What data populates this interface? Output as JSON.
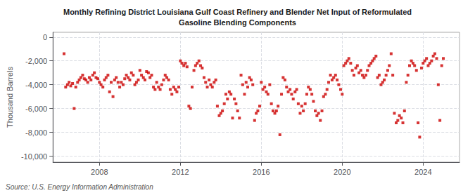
{
  "chart_data": {
    "type": "scatter",
    "title": "Monthly Refining District Louisiana Gulf Coast Refinery and Blender Net Input of Reformulated\nGasoline Blending Components",
    "ylabel": "Thousand Barrels",
    "annotations": [
      "Source: U.S. Energy Information Administration"
    ],
    "color": "#cc0000",
    "marker": "square",
    "grid": true,
    "xlim": [
      2005.7,
      2025.8
    ],
    "xticks": [
      2008,
      2012,
      2016,
      2020,
      2024
    ],
    "ylim": [
      -10500,
      400
    ],
    "yticks": [
      0,
      {
        "value": -2000,
        "label": "-2,000"
      },
      {
        "value": -4000,
        "label": "-4,000"
      },
      {
        "value": -6000,
        "label": "-6,000"
      },
      {
        "value": -8000,
        "label": "-8,000"
      },
      {
        "value": -10000,
        "label": "-10,000"
      }
    ],
    "x": [
      2006.25,
      2006.33,
      2006.42,
      2006.5,
      2006.58,
      2006.67,
      2006.75,
      2006.83,
      2006.92,
      2007.0,
      2007.08,
      2007.17,
      2007.25,
      2007.33,
      2007.42,
      2007.5,
      2007.58,
      2007.67,
      2007.75,
      2007.83,
      2007.92,
      2008.0,
      2008.08,
      2008.17,
      2008.25,
      2008.33,
      2008.42,
      2008.5,
      2008.58,
      2008.67,
      2008.75,
      2008.83,
      2008.92,
      2009.0,
      2009.08,
      2009.17,
      2009.25,
      2009.33,
      2009.42,
      2009.5,
      2009.58,
      2009.67,
      2009.75,
      2009.83,
      2009.92,
      2010.0,
      2010.08,
      2010.17,
      2010.25,
      2010.33,
      2010.42,
      2010.5,
      2010.58,
      2010.67,
      2010.75,
      2010.83,
      2010.92,
      2011.0,
      2011.08,
      2011.17,
      2011.25,
      2011.33,
      2011.42,
      2011.5,
      2011.58,
      2011.67,
      2011.75,
      2011.83,
      2011.92,
      2012.0,
      2012.08,
      2012.17,
      2012.25,
      2012.33,
      2012.42,
      2012.5,
      2012.58,
      2012.67,
      2012.75,
      2012.83,
      2012.92,
      2013.0,
      2013.08,
      2013.17,
      2013.25,
      2013.33,
      2013.42,
      2013.5,
      2013.58,
      2013.67,
      2013.75,
      2013.83,
      2013.92,
      2014.0,
      2014.08,
      2014.17,
      2014.25,
      2014.33,
      2014.42,
      2014.5,
      2014.58,
      2014.67,
      2014.75,
      2014.83,
      2014.92,
      2015.0,
      2015.08,
      2015.17,
      2015.25,
      2015.33,
      2015.42,
      2015.5,
      2015.58,
      2015.67,
      2015.75,
      2015.83,
      2015.92,
      2016.0,
      2016.08,
      2016.17,
      2016.25,
      2016.33,
      2016.42,
      2016.5,
      2016.58,
      2016.67,
      2016.75,
      2016.83,
      2016.92,
      2017.0,
      2017.08,
      2017.17,
      2017.25,
      2017.33,
      2017.42,
      2017.5,
      2017.58,
      2017.67,
      2017.75,
      2017.83,
      2017.92,
      2018.0,
      2018.08,
      2018.17,
      2018.25,
      2018.33,
      2018.42,
      2018.5,
      2018.58,
      2018.67,
      2018.75,
      2018.83,
      2018.92,
      2019.0,
      2019.08,
      2019.17,
      2019.25,
      2019.33,
      2019.42,
      2019.5,
      2019.58,
      2019.67,
      2019.75,
      2019.83,
      2019.92,
      2020.0,
      2020.08,
      2020.17,
      2020.25,
      2020.33,
      2020.42,
      2020.5,
      2020.58,
      2020.67,
      2020.75,
      2020.83,
      2020.92,
      2021.0,
      2021.08,
      2021.17,
      2021.25,
      2021.33,
      2021.42,
      2021.5,
      2021.58,
      2021.67,
      2021.75,
      2021.83,
      2021.92,
      2022.0,
      2022.08,
      2022.17,
      2022.25,
      2022.33,
      2022.42,
      2022.5,
      2022.58,
      2022.67,
      2022.75,
      2022.83,
      2022.92,
      2023.0,
      2023.08,
      2023.17,
      2023.25,
      2023.33,
      2023.42,
      2023.5,
      2023.58,
      2023.67,
      2023.75,
      2023.83,
      2023.92,
      2024.0,
      2024.08,
      2024.17,
      2024.25,
      2024.33,
      2024.42,
      2024.5,
      2024.58,
      2024.67,
      2024.75,
      2024.83,
      2024.92,
      2025.0
    ],
    "values": [
      -1400,
      -4200,
      -4000,
      -3800,
      -4100,
      -3900,
      -6000,
      -4200,
      -3800,
      -3600,
      -3400,
      -3200,
      -3500,
      -3600,
      -3800,
      -3400,
      -3600,
      -3200,
      -3000,
      -3400,
      -3500,
      -3800,
      -4000,
      -4200,
      -3600,
      -3400,
      -3200,
      -4600,
      -3800,
      -5000,
      -3600,
      -3400,
      -3800,
      -4200,
      -3800,
      -4000,
      -3500,
      -3200,
      -3400,
      -3600,
      -3000,
      -3200,
      -4000,
      -3800,
      -3600,
      -2800,
      -3200,
      -3400,
      -3600,
      -2900,
      -3000,
      -3400,
      -3200,
      -4200,
      -4400,
      -3800,
      -4200,
      -4400,
      -4000,
      -3600,
      -3200,
      -3400,
      -3600,
      -4400,
      -4800,
      -4200,
      -4400,
      -4600,
      -4200,
      -2000,
      -2200,
      -2400,
      -2200,
      -2500,
      -5800,
      -6000,
      -4200,
      -2800,
      -2400,
      -2200,
      -2000,
      -2400,
      -2600,
      -3400,
      -3800,
      -4200,
      -3600,
      -4000,
      -4200,
      -3800,
      -3600,
      -5800,
      -6600,
      -6400,
      -6200,
      -5600,
      -4800,
      -5200,
      -4600,
      -4800,
      -6800,
      -5200,
      -5600,
      -6200,
      -6800,
      -3200,
      -4000,
      -4800,
      -3800,
      -4200,
      -3400,
      -3600,
      -4000,
      -7000,
      -6400,
      -6200,
      -5800,
      -3800,
      -4400,
      -4200,
      -4600,
      -4800,
      -4000,
      -5600,
      -6200,
      -6400,
      -6200,
      -5800,
      -8200,
      -4800,
      -3400,
      -3600,
      -4200,
      -4600,
      -4400,
      -4800,
      -5200,
      -4600,
      -4400,
      -5600,
      -6400,
      -5800,
      -6200,
      -5600,
      -4800,
      -4200,
      -4400,
      -4800,
      -5400,
      -6200,
      -6600,
      -6400,
      -7000,
      -6200,
      -5000,
      -4800,
      -4400,
      -3800,
      -3200,
      -3600,
      -3400,
      -3200,
      -3600,
      -4000,
      -4400,
      -4800,
      -2400,
      -2200,
      -2000,
      -1800,
      -2200,
      -2800,
      -3200,
      -2600,
      -2400,
      -3000,
      -2800,
      -3200,
      -3400,
      -3200,
      -2800,
      -2400,
      -2200,
      -2000,
      -1800,
      -1600,
      -3400,
      -3200,
      -4000,
      -3800,
      -3600,
      -3200,
      -2800,
      -2400,
      -1400,
      -3200,
      -6400,
      -7200,
      -7000,
      -6600,
      -6800,
      -7200,
      -6200,
      -3800,
      -3200,
      -2400,
      -2000,
      -2200,
      -2400,
      -2800,
      -7200,
      -8400,
      -2600,
      -2200,
      -2000,
      -1800,
      -2400,
      -2200,
      -2000,
      -1600,
      -1400,
      -1800,
      -4000,
      -7000,
      -2400,
      -1800
    ]
  }
}
